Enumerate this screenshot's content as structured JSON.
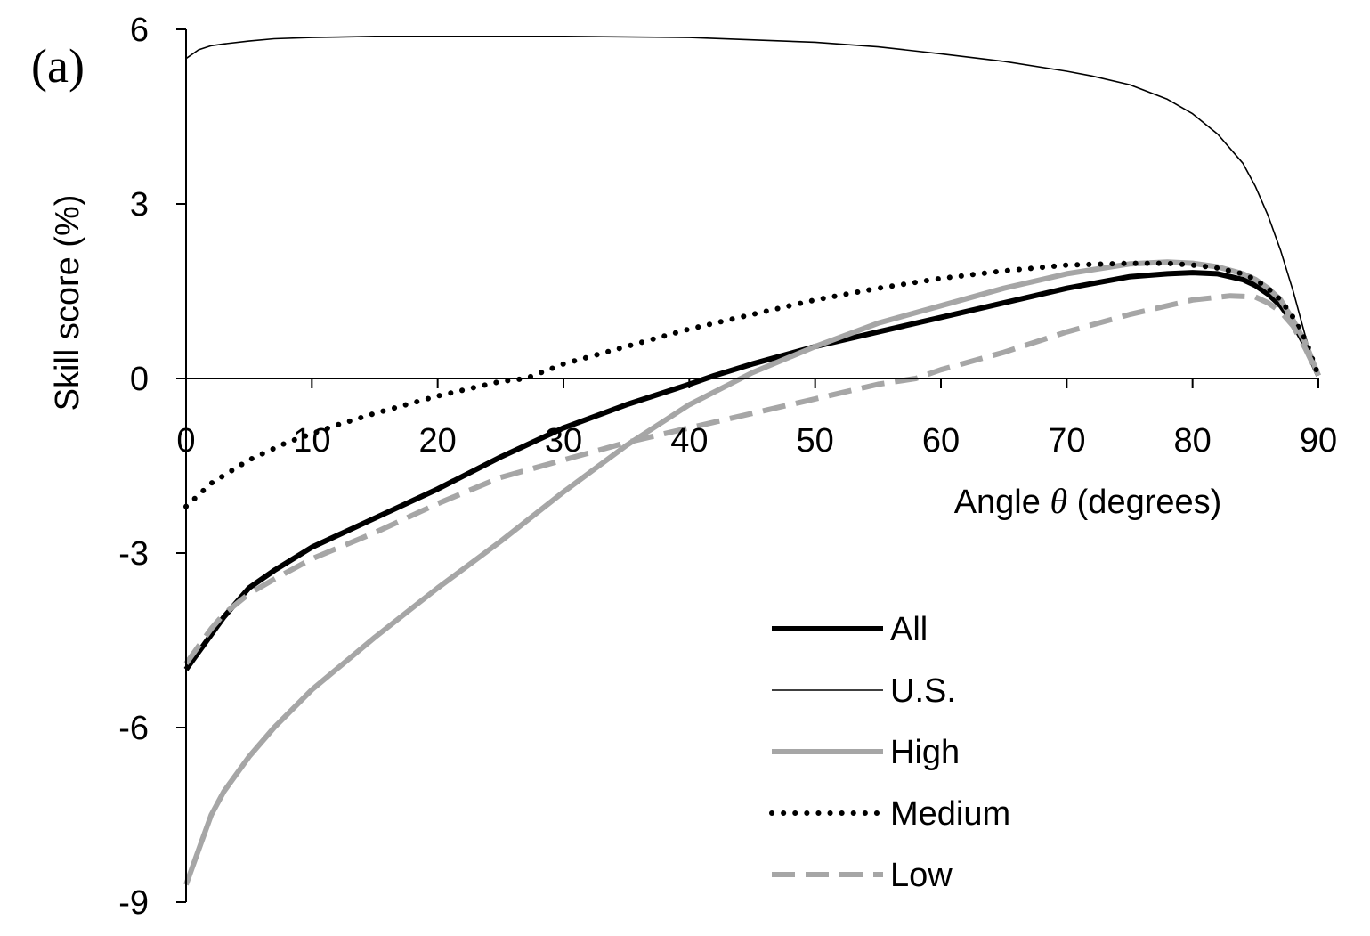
{
  "chart_data": {
    "type": "line",
    "panel_label": "(a)",
    "title": "",
    "xlabel": {
      "prefix": "Angle ",
      "symbol": "θ",
      "suffix": " (degrees)"
    },
    "ylabel": "Skill score (%)",
    "xlim": [
      0,
      90
    ],
    "ylim": [
      -9,
      6
    ],
    "xticks": [
      0,
      10,
      20,
      30,
      40,
      50,
      60,
      70,
      80,
      90
    ],
    "yticks": [
      -9,
      -6,
      -3,
      0,
      3,
      6
    ],
    "grid": false,
    "legend_position": "bottom-right",
    "series": [
      {
        "name": "All",
        "style": "solid-thick",
        "color": "#000000",
        "x": [
          0,
          1,
          2,
          3,
          5,
          7,
          10,
          12,
          15,
          20,
          25,
          30,
          35,
          40,
          42,
          45,
          50,
          55,
          60,
          65,
          70,
          75,
          78,
          80,
          82,
          84,
          85,
          86,
          87,
          88,
          89,
          90
        ],
        "y": [
          -5.0,
          -4.7,
          -4.4,
          -4.1,
          -3.6,
          -3.3,
          -2.9,
          -2.7,
          -2.4,
          -1.9,
          -1.35,
          -0.85,
          -0.45,
          -0.1,
          0.05,
          0.25,
          0.55,
          0.8,
          1.05,
          1.3,
          1.55,
          1.75,
          1.8,
          1.82,
          1.8,
          1.7,
          1.6,
          1.45,
          1.25,
          0.95,
          0.55,
          0.05
        ]
      },
      {
        "name": "U.S.",
        "style": "solid-thin",
        "color": "#000000",
        "x": [
          0,
          1,
          2,
          3,
          5,
          7,
          10,
          15,
          20,
          30,
          40,
          50,
          55,
          60,
          65,
          70,
          72,
          75,
          78,
          80,
          82,
          84,
          85,
          86,
          87,
          88,
          89,
          90
        ],
        "y": [
          5.5,
          5.65,
          5.72,
          5.75,
          5.8,
          5.84,
          5.86,
          5.88,
          5.88,
          5.88,
          5.86,
          5.78,
          5.7,
          5.58,
          5.45,
          5.28,
          5.2,
          5.05,
          4.8,
          4.55,
          4.2,
          3.7,
          3.3,
          2.8,
          2.2,
          1.5,
          0.7,
          0.05
        ]
      },
      {
        "name": "High",
        "style": "solid-thick",
        "color": "#a6a6a6",
        "x": [
          0,
          1,
          2,
          3,
          5,
          7,
          10,
          15,
          20,
          25,
          30,
          35,
          40,
          45,
          50,
          55,
          60,
          65,
          70,
          75,
          78,
          80,
          82,
          84,
          85,
          86,
          87,
          88,
          89,
          90
        ],
        "y": [
          -8.7,
          -8.1,
          -7.5,
          -7.1,
          -6.5,
          -6.0,
          -5.35,
          -4.45,
          -3.6,
          -2.8,
          -1.95,
          -1.15,
          -0.45,
          0.1,
          0.55,
          0.95,
          1.25,
          1.55,
          1.8,
          1.97,
          2.0,
          1.98,
          1.92,
          1.8,
          1.7,
          1.55,
          1.35,
          1.0,
          0.6,
          0.05
        ]
      },
      {
        "name": "Medium",
        "style": "dotted",
        "color": "#000000",
        "x": [
          0,
          2,
          5,
          8,
          10,
          12,
          15,
          20,
          25,
          27,
          30,
          35,
          40,
          45,
          50,
          55,
          60,
          65,
          70,
          75,
          78,
          80,
          82,
          84,
          85,
          86,
          87,
          88,
          89,
          90
        ],
        "y": [
          -2.2,
          -1.8,
          -1.4,
          -1.1,
          -0.95,
          -0.8,
          -0.6,
          -0.3,
          -0.05,
          0.0,
          0.25,
          0.55,
          0.85,
          1.1,
          1.35,
          1.55,
          1.72,
          1.85,
          1.95,
          1.98,
          1.98,
          1.95,
          1.9,
          1.8,
          1.7,
          1.55,
          1.35,
          1.05,
          0.65,
          0.05
        ]
      },
      {
        "name": "Low",
        "style": "dashed",
        "color": "#a6a6a6",
        "x": [
          0,
          1,
          2,
          3,
          5,
          7,
          10,
          15,
          20,
          25,
          30,
          35,
          40,
          45,
          50,
          55,
          58,
          60,
          65,
          70,
          75,
          80,
          83,
          85,
          86,
          87,
          88,
          89,
          90
        ],
        "y": [
          -4.9,
          -4.6,
          -4.3,
          -4.05,
          -3.7,
          -3.45,
          -3.1,
          -2.65,
          -2.15,
          -1.7,
          -1.4,
          -1.1,
          -0.85,
          -0.6,
          -0.35,
          -0.1,
          0.0,
          0.15,
          0.45,
          0.8,
          1.1,
          1.35,
          1.42,
          1.4,
          1.3,
          1.15,
          0.9,
          0.5,
          0.05
        ]
      }
    ]
  }
}
